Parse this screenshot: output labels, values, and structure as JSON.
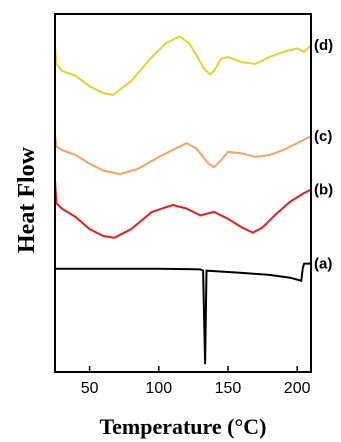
{
  "chart_data": {
    "type": "line",
    "title": "",
    "xlabel": "Temperature (°C)",
    "ylabel": "Heat Flow",
    "xlim": [
      25,
      210
    ],
    "xticks": [
      50,
      100,
      150,
      200
    ],
    "grid": false,
    "yticks_shown": false,
    "series": [
      {
        "name": "(d)",
        "color": "#d9d92a",
        "x": [
          25,
          26,
          30,
          40,
          50,
          60,
          67,
          80,
          95,
          105,
          115,
          122,
          128,
          133,
          137,
          140,
          145,
          150,
          160,
          170,
          180,
          190,
          200,
          205,
          210
        ],
        "y": [
          7.8,
          7.25,
          7.05,
          6.9,
          6.6,
          6.4,
          6.35,
          6.75,
          7.45,
          7.85,
          8.05,
          7.85,
          7.45,
          7.1,
          6.95,
          7.05,
          7.4,
          7.45,
          7.3,
          7.25,
          7.45,
          7.6,
          7.7,
          7.6,
          7.8
        ]
      },
      {
        "name": "(c)",
        "color": "#f2a468",
        "x": [
          25,
          26,
          30,
          40,
          50,
          60,
          72,
          85,
          100,
          110,
          120,
          127,
          132,
          136,
          140,
          145,
          150,
          160,
          170,
          180,
          190,
          200,
          210
        ],
        "y": [
          5.2,
          4.85,
          4.75,
          4.6,
          4.35,
          4.15,
          4.05,
          4.2,
          4.55,
          4.75,
          4.95,
          4.8,
          4.55,
          4.35,
          4.25,
          4.45,
          4.7,
          4.65,
          4.55,
          4.6,
          4.75,
          4.95,
          5.15
        ]
      },
      {
        "name": "(b)",
        "color": "#e61e1e",
        "x": [
          25,
          26,
          30,
          40,
          50,
          60,
          68,
          80,
          95,
          110,
          120,
          130,
          140,
          150,
          160,
          168,
          175,
          185,
          195,
          205,
          210
        ],
        "y": [
          3.9,
          3.2,
          3.05,
          2.8,
          2.45,
          2.25,
          2.2,
          2.45,
          2.95,
          3.15,
          3.05,
          2.85,
          2.95,
          2.75,
          2.5,
          2.35,
          2.5,
          2.9,
          3.25,
          3.5,
          3.6
        ]
      },
      {
        "name": "(a)",
        "color": "#000000",
        "x": [
          25,
          40,
          60,
          80,
          100,
          120,
          130,
          132,
          133.5,
          134.5,
          135.5,
          140,
          160,
          180,
          195,
          203,
          204,
          205,
          210
        ],
        "y": [
          1.3,
          1.3,
          1.3,
          1.3,
          1.3,
          1.29,
          1.28,
          1.25,
          -1.45,
          1.25,
          1.24,
          1.23,
          1.18,
          1.12,
          1.04,
          0.95,
          1.3,
          1.45,
          1.45
        ]
      }
    ]
  }
}
